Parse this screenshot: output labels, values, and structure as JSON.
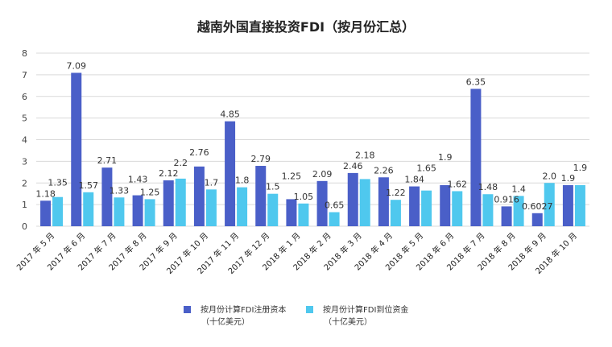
{
  "chart_data": {
    "type": "bar",
    "title": "越南外国直接投资FDI（按月份汇总）",
    "categories": [
      "2017 年 5 月",
      "2017 年 6 月",
      "2017 年 7 月",
      "2017 年 8 月",
      "2017 年 9 月",
      "2017 年 10 月",
      "2017 年 11 月",
      "2017 年 12 月",
      "2018 年 1 月",
      "2018 年 2 月",
      "2018 年 3 月",
      "2018 年 4 月",
      "2018 年 5 月",
      "2018 年 6 月",
      "2018 年 7 月",
      "2018 年 8 月",
      "2018 年 9 月",
      "2018 年 10 月"
    ],
    "series": [
      {
        "name": "按月份计算FDI注册资本",
        "unit": "（十亿美元）",
        "color": "#4a5fc8",
        "values": [
          1.18,
          7.09,
          2.71,
          1.43,
          2.12,
          2.76,
          4.85,
          2.79,
          1.25,
          2.09,
          2.46,
          2.26,
          1.84,
          1.9,
          6.35,
          0.916,
          0.6027,
          1.9
        ],
        "labels": [
          "1.18",
          "7.09",
          "2.71",
          "1.43",
          "2.12",
          "2.76",
          "4.85",
          "2.79",
          "1.25",
          "2.09",
          "2.46",
          "2.26",
          "1.84",
          "1.9",
          "6.35",
          "0.916",
          "0.6027",
          "1.9"
        ]
      },
      {
        "name": "按月份计算FDI到位资金",
        "unit": "（十亿美元）",
        "color": "#4fc8ee",
        "values": [
          1.35,
          1.57,
          1.33,
          1.25,
          2.2,
          1.7,
          1.8,
          1.5,
          1.05,
          0.65,
          2.18,
          1.22,
          1.65,
          1.62,
          1.48,
          1.4,
          2.0,
          1.9
        ],
        "labels": [
          "1.35",
          "1.57",
          "1.33",
          "1.25",
          "2.2",
          "1.7",
          "1.8",
          "1.5",
          "1.05",
          "0.65",
          "2.18",
          "1.22",
          "1.65",
          "1.62",
          "1.48",
          "1.4",
          "2.0",
          "1.9"
        ]
      }
    ],
    "ylim": [
      0,
      8
    ],
    "yticks": [
      "0",
      "1",
      "2",
      "3",
      "4",
      "5",
      "6",
      "7",
      "8"
    ],
    "grid": true,
    "legend": "bottom"
  }
}
